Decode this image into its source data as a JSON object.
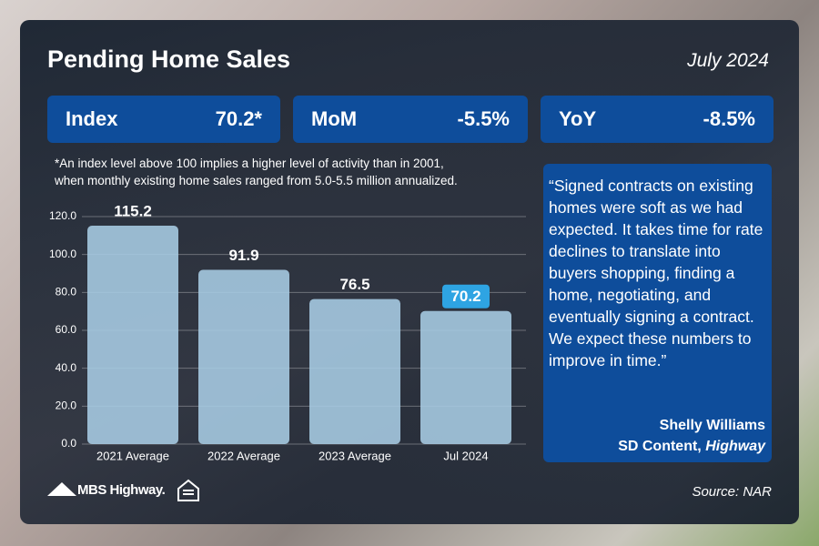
{
  "header": {
    "title": "Pending Home Sales",
    "date": "July 2024"
  },
  "stats": [
    {
      "label": "Index",
      "value": "70.2*"
    },
    {
      "label": "MoM",
      "value": "-5.5%"
    },
    {
      "label": "YoY",
      "value": "-8.5%"
    }
  ],
  "footnote": [
    "*An index level above 100 implies a higher level of activity than in 2001,",
    "when monthly existing home sales ranged from 5.0-5.5 million annualized."
  ],
  "chart_data": {
    "type": "bar",
    "categories": [
      "2021 Average",
      "2022 Average",
      "2023 Average",
      "Jul 2024"
    ],
    "values": [
      115.2,
      91.9,
      76.5,
      70.2
    ],
    "color": "#a8cde5",
    "ylim": [
      0,
      120
    ],
    "yticks": [
      {
        "value": 0,
        "label": "0.0"
      },
      {
        "value": 20,
        "label": "20.0"
      },
      {
        "value": 40,
        "label": "40.0"
      },
      {
        "value": 60,
        "label": "60.0"
      },
      {
        "value": 80,
        "label": "80.0"
      },
      {
        "value": 100,
        "label": "100.0"
      },
      {
        "value": 120,
        "label": "120.0"
      }
    ],
    "grid": true
  },
  "quote": {
    "text": "“Signed contracts on existing homes were soft as we had expected. It takes time for rate declines to translate into buyers shopping, finding a home, negotiating, and eventually signing a contract. We expect these numbers to improve in time.”",
    "author": "Shelly Williams",
    "role": "SD Content,",
    "company": "Highway"
  },
  "footer": {
    "logo": "MBS Highway.",
    "source": "Source: NAR"
  }
}
